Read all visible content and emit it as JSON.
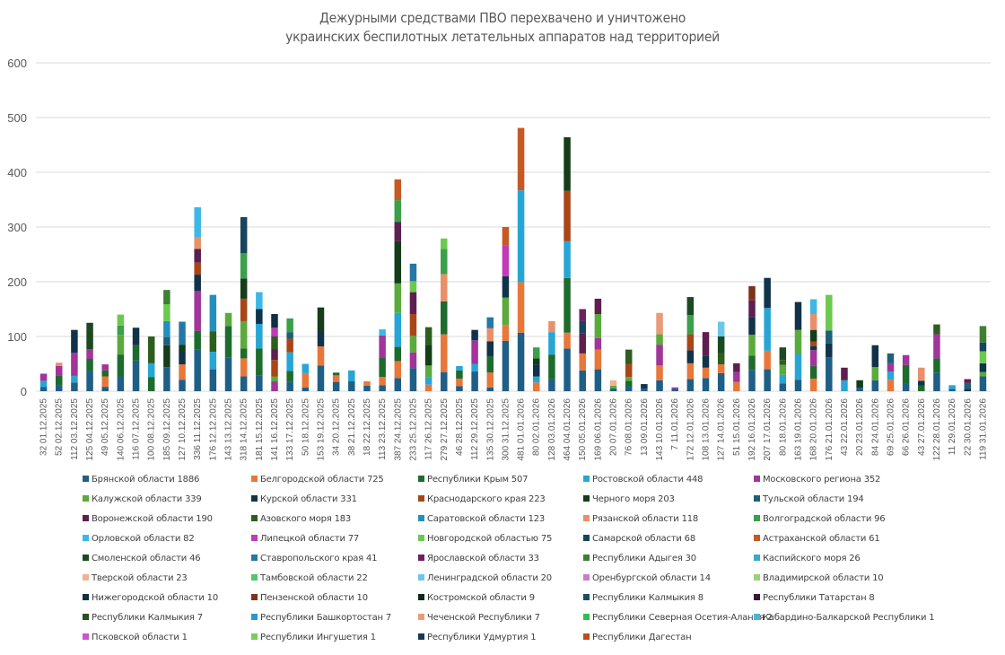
{
  "chart_data": {
    "type": "bar",
    "stacked": true,
    "title": "Дежурными средствами ПВО перехвачено и уничтожено украинских беспилотных летательных аппаратов над территорией",
    "title_lines": [
      "Дежурными средствами ПВО перехвачено и уничтожено",
      "украинских беспилотных летательных аппаратов над территорией"
    ],
    "xlabel": "",
    "ylabel": "",
    "ylim": [
      0,
      600
    ],
    "yticks": [
      0,
      100,
      200,
      300,
      400,
      500,
      600
    ],
    "grid": true,
    "legend_position": "bottom",
    "categories": [
      "01.12.2025",
      "02.12.2025",
      "03.12.2025",
      "04.12.2025",
      "05.12.2025",
      "06.12.2025",
      "07.12.2025",
      "08.12.2025",
      "09.12.2025",
      "10.12.2025",
      "11.12.2025",
      "12.12.2025",
      "13.12.2025",
      "14.12.2025",
      "15.12.2025",
      "16.12.2025",
      "17.12.2025",
      "18.12.2025",
      "19.12.2025",
      "20.12.2025",
      "21.12.2025",
      "22.12.2025",
      "23.12.2025",
      "24.12.2025",
      "25.12.2025",
      "26.12.2025",
      "27.12.2025",
      "28.12.2025",
      "29.12.2025",
      "30.12.2025",
      "31.12.2025",
      "01.01.2026",
      "02.01.2026",
      "03.01.2026",
      "04.01.2026",
      "05.01.2026",
      "06.01.2026",
      "07.01.2026",
      "08.01.2026",
      "09.01.2026",
      "10.01.2026",
      "11.01.2026",
      "12.01.2026",
      "13.01.2026",
      "14.01.2026",
      "15.01.2026",
      "16.01.2026",
      "17.01.2026",
      "18.01.2026",
      "19.01.2026",
      "20.01.2026",
      "21.01.2026",
      "22.01.2026",
      "23.01.2026",
      "24.01.2026",
      "25.01.2026",
      "26.01.2026",
      "27.01.2026",
      "28.01.2026",
      "29.01.2026",
      "30.01.2026",
      "31.01.2026"
    ],
    "totals": [
      32,
      52,
      112,
      125,
      49,
      140,
      116,
      100,
      185,
      127,
      336,
      176,
      143,
      318,
      181,
      141,
      133,
      50,
      153,
      34,
      38,
      18,
      113,
      387,
      233,
      117,
      279,
      46,
      112,
      135,
      300,
      481,
      80,
      128,
      464,
      150,
      169,
      20,
      76,
      13,
      143,
      7,
      172,
      108,
      127,
      51,
      192,
      207,
      80,
      163,
      168,
      176,
      43,
      20,
      84,
      69,
      66,
      43,
      122,
      11,
      22,
      119
    ],
    "series": [
      {
        "name": "Брянской области",
        "total": 1886,
        "color": "#1f5f86"
      },
      {
        "name": "Белгородской области",
        "total": 725,
        "color": "#e8773a"
      },
      {
        "name": "Республики Крым",
        "total": 507,
        "color": "#1e6b2e"
      },
      {
        "name": "Ростовской области",
        "total": 448,
        "color": "#27a6d6"
      },
      {
        "name": "Московского региона",
        "total": 352,
        "color": "#a0359a"
      },
      {
        "name": "Калужской области",
        "total": 339,
        "color": "#5aaa3c"
      },
      {
        "name": "Курской области",
        "total": 331,
        "color": "#10334a"
      },
      {
        "name": "Краснодарского края",
        "total": 223,
        "color": "#a84618"
      },
      {
        "name": "Черного моря",
        "total": 203,
        "color": "#143d18"
      },
      {
        "name": "Тульской области",
        "total": 194,
        "color": "#1e6078"
      },
      {
        "name": "Воронежской области",
        "total": 190,
        "color": "#5c1f4f"
      },
      {
        "name": "Азовского моря",
        "total": 183,
        "color": "#2e5e1e"
      },
      {
        "name": "Саратовской области",
        "total": 123,
        "color": "#238fbd"
      },
      {
        "name": "Рязанской области",
        "total": 118,
        "color": "#e8906a"
      },
      {
        "name": "Волгоградской области",
        "total": 96,
        "color": "#3aa04a"
      },
      {
        "name": "Орловской области",
        "total": 82,
        "color": "#3db8e6"
      },
      {
        "name": "Липецкой области",
        "total": 77,
        "color": "#c13ab8"
      },
      {
        "name": "Новгородской областью",
        "total": 75,
        "color": "#6cc94e"
      },
      {
        "name": "Самарской области",
        "total": 68,
        "color": "#17455e"
      },
      {
        "name": "Астраханской области",
        "total": 61,
        "color": "#c45a24"
      },
      {
        "name": "Смоленской области",
        "total": 46,
        "color": "#1b4a22"
      },
      {
        "name": "Ставропольского края",
        "total": 41,
        "color": "#2477a6"
      },
      {
        "name": "Ярославской области",
        "total": 33,
        "color": "#6b2260"
      },
      {
        "name": "Республики Адыгея",
        "total": 30,
        "color": "#3f7f32"
      },
      {
        "name": "Каспийского моря",
        "total": 26,
        "color": "#3ba9c6"
      },
      {
        "name": "Тверской области",
        "total": 23,
        "color": "#f0b292"
      },
      {
        "name": "Тамбовской области",
        "total": 22,
        "color": "#4fc86a"
      },
      {
        "name": "Ленинградской области",
        "total": 20,
        "color": "#6cc6ea"
      },
      {
        "name": "Оренбургской области",
        "total": 14,
        "color": "#c87ec6"
      },
      {
        "name": "Владимирской области",
        "total": 10,
        "color": "#9ccf7e"
      },
      {
        "name": "Нижегородской области",
        "total": 10,
        "color": "#0f2f42"
      },
      {
        "name": "Пензенской области",
        "total": 10,
        "color": "#7a3418"
      },
      {
        "name": "Костромской области",
        "total": 9,
        "color": "#0f2a12"
      },
      {
        "name": "Республики Калмыкия",
        "total": 8,
        "color": "#1a4e66"
      },
      {
        "name": "Республики Татарстан",
        "total": 8,
        "color": "#3d1436"
      },
      {
        "name": "Республики Калмыкия",
        "total": 7,
        "color": "#2a5120"
      },
      {
        "name": "Республики Башкортостан",
        "total": 7,
        "color": "#2a97cf"
      },
      {
        "name": "Чеченской Республики",
        "total": 7,
        "color": "#e89c7a"
      },
      {
        "name": "Республики Северная Осетия-Алания",
        "total": 2,
        "color": "#2fbf4f"
      },
      {
        "name": "Кабардино-Балкарской Республики",
        "total": 1,
        "color": "#4cb4d8"
      },
      {
        "name": "Псковской области",
        "total": 1,
        "color": "#cc55cc"
      },
      {
        "name": "Республики Ингушетия",
        "total": 1,
        "color": "#78cc5a"
      },
      {
        "name": "Республики Удмуртия",
        "total": 1,
        "color": "#163a55"
      },
      {
        "name": "Республики Дагестан",
        "total": null,
        "color": "#b5501d"
      }
    ],
    "legend_labels": [
      "Брянской области 1886",
      "Белгородской области 725",
      "Республики Крым 507",
      "Ростовской области 448",
      "Московского региона 352",
      "Калужской области 339",
      "Курской области 331",
      "Краснодарского края 223",
      "Черного моря 203",
      "Тульской области 194",
      "Воронежской области 190",
      "Азовского моря 183",
      "Саратовской области 123",
      "Рязанской области 118",
      "Волгоградской области 96",
      "Орловской области 82",
      "Липецкой области 77",
      "Новгородской областью 75",
      "Самарской области 68",
      "Астраханской области 61",
      "Смоленской области 46",
      "Ставропольского края 41",
      "Ярославской области 33",
      "Республики Адыгея 30",
      "Каспийского моря 26",
      "Тверской области 23",
      "Тамбовской области 22",
      "Ленинградской области 20",
      "Оренбургской области 14",
      "Владимирской области 10",
      "Нижегородской области 10",
      "Пензенской области 10",
      "Костромской области 9",
      "Республики Калмыкия 8",
      "Республики Татарстан 8",
      "Республики Калмыкия 7",
      "Республики Башкортостан 7",
      "Чеченской Республики 7",
      "Республики Северная Осетия-Алания 2",
      "Кабардино-Балкарской Республики 1",
      "Псковской области 1",
      "Республики Ингушетия 1",
      "Республики Удмуртия 1",
      "Республики Дагестан"
    ]
  }
}
